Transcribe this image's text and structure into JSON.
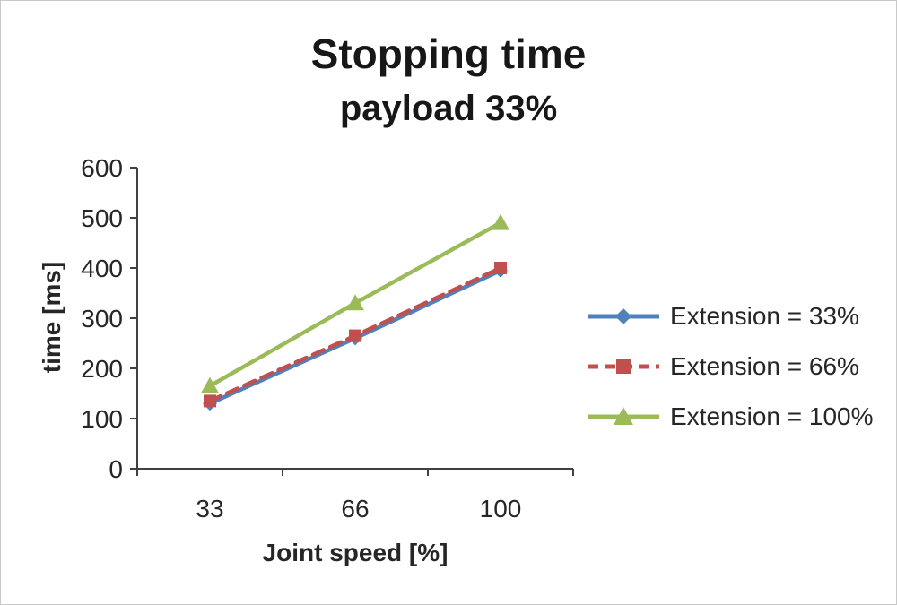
{
  "chart_data": {
    "type": "line",
    "title": "Stopping time",
    "subtitle": "payload 33%",
    "xlabel": "Joint speed [%]",
    "ylabel": "time [ms]",
    "categories": [
      "33",
      "66",
      "100"
    ],
    "series": [
      {
        "name": "Extension = 33%",
        "values": [
          130,
          260,
          395
        ],
        "color": "#4f81bd",
        "marker": "diamond",
        "line": "solid"
      },
      {
        "name": "Extension = 66%",
        "values": [
          135,
          265,
          400
        ],
        "color": "#c0504d",
        "marker": "square",
        "line": "dashed"
      },
      {
        "name": "Extension = 100%",
        "values": [
          165,
          330,
          490
        ],
        "color": "#9bbb59",
        "marker": "triangle",
        "line": "solid"
      }
    ],
    "ylim": [
      0,
      600
    ],
    "yticks": [
      0,
      100,
      200,
      300,
      400,
      500,
      600
    ],
    "grid": false,
    "legend_position": "right",
    "axis_color": "#404040",
    "text_color": "#262626"
  }
}
